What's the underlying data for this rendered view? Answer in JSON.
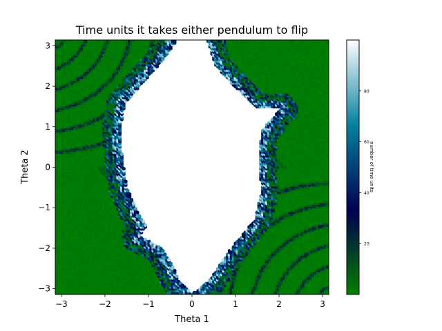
{
  "chart_data": {
    "type": "scatter",
    "title": "Time units it takes either pendulum to flip",
    "xlabel": "Theta 1",
    "ylabel": "Theta 2",
    "xlim": [
      -3.14159,
      3.14159
    ],
    "ylim": [
      -3.14159,
      3.14159
    ],
    "xticks": [
      -3,
      -2,
      -1,
      0,
      1,
      2,
      3
    ],
    "yticks": [
      -3,
      -2,
      -1,
      0,
      1,
      2,
      3
    ],
    "grid": false,
    "colormap": "ocean",
    "colorbar": {
      "label": "number of time units",
      "range": [
        0,
        100
      ],
      "ticks": [
        20,
        40,
        60,
        80
      ],
      "stops": [
        {
          "v": 0,
          "color": "#008000"
        },
        {
          "v": 33,
          "color": "#000052"
        },
        {
          "v": 66,
          "color": "#007f9e"
        },
        {
          "v": 100,
          "color": "#ffffff"
        }
      ]
    },
    "regions": {
      "no_flip_boundary": [
        [
          -0.35,
          3.14
        ],
        [
          -0.7,
          2.6
        ],
        [
          -1.2,
          2.0
        ],
        [
          -1.55,
          1.55
        ],
        [
          -1.65,
          0.9
        ],
        [
          -1.6,
          0.2
        ],
        [
          -1.5,
          -0.5
        ],
        [
          -1.25,
          -1.1
        ],
        [
          -1.05,
          -1.45
        ],
        [
          -1.2,
          -1.7
        ],
        [
          -0.7,
          -2.0
        ],
        [
          -0.45,
          -2.4
        ],
        [
          -0.3,
          -2.8
        ],
        [
          0.0,
          -3.14
        ],
        [
          0.4,
          -2.8
        ],
        [
          0.9,
          -2.0
        ],
        [
          1.45,
          -1.3
        ],
        [
          1.6,
          -0.6
        ],
        [
          1.55,
          0.2
        ],
        [
          1.6,
          0.9
        ],
        [
          2.05,
          1.45
        ],
        [
          1.5,
          1.45
        ],
        [
          1.05,
          1.9
        ],
        [
          0.55,
          2.5
        ],
        [
          0.35,
          3.14
        ]
      ],
      "fast_flip_corners": [
        {
          "center": [
            -2.7,
            2.7
          ],
          "value": 2
        },
        {
          "center": [
            2.7,
            2.7
          ],
          "value": 2
        },
        {
          "center": [
            -2.7,
            -2.7
          ],
          "value": 2
        },
        {
          "center": [
            2.7,
            -2.7
          ],
          "value": 2
        }
      ]
    }
  }
}
